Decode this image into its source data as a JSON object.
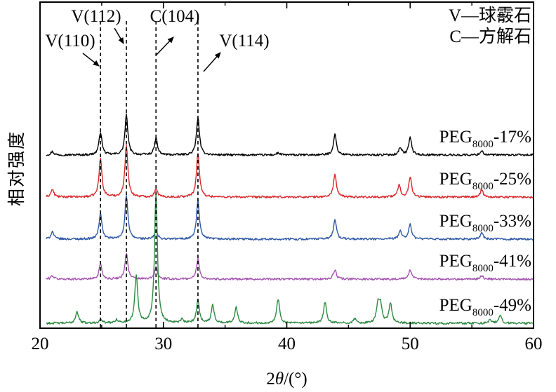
{
  "chart_data": {
    "type": "line",
    "title": "",
    "xlabel": "2θ/(°)",
    "xlabel_parts": {
      "prefix": "2",
      "theta": "θ",
      "suffix": "/(°)"
    },
    "ylabel": "相对强度",
    "xlim": [
      20,
      60
    ],
    "xticks": [
      "20",
      "30",
      "40",
      "50",
      "60"
    ],
    "yticks": [],
    "grid": false,
    "legend": [
      {
        "key": "V",
        "text": "V—球霰石"
      },
      {
        "key": "C",
        "text": "C—方解石"
      }
    ],
    "reference_lines": [
      {
        "name": "V(110)",
        "x": 24.9
      },
      {
        "name": "V(112)",
        "x": 27.0
      },
      {
        "name": "C(104)",
        "x": 29.4
      },
      {
        "name": "V(114)",
        "x": 32.8
      }
    ],
    "annotations": [
      {
        "text": "V(110)",
        "x": 24.9
      },
      {
        "text": "V(112)",
        "x": 27.0
      },
      {
        "text": "C(104)",
        "x": 29.4
      },
      {
        "text": "V(114)",
        "x": 32.8
      }
    ],
    "baseline_noise": 0.025,
    "series": [
      {
        "name": "PEG8000-17%",
        "label": {
          "base": "PEG",
          "sub": "8000",
          "rest": "-17%"
        },
        "color": "#000000",
        "offset": 4.0,
        "peaks": [
          [
            21.0,
            0.08
          ],
          [
            24.9,
            0.55
          ],
          [
            27.0,
            0.95
          ],
          [
            29.4,
            0.4
          ],
          [
            32.8,
            0.9
          ],
          [
            39.3,
            0.05
          ],
          [
            43.9,
            0.5
          ],
          [
            49.2,
            0.18
          ],
          [
            50.0,
            0.42
          ],
          [
            55.8,
            0.1
          ]
        ]
      },
      {
        "name": "PEG8000-25%",
        "label": {
          "base": "PEG",
          "sub": "8000",
          "rest": "-25%"
        },
        "color": "#d9282c",
        "offset": 3.0,
        "peaks": [
          [
            21.0,
            0.18
          ],
          [
            24.9,
            0.92
          ],
          [
            27.0,
            1.25
          ],
          [
            29.4,
            0.2
          ],
          [
            32.8,
            1.05
          ],
          [
            43.9,
            0.55
          ],
          [
            49.1,
            0.28
          ],
          [
            50.0,
            0.48
          ],
          [
            55.8,
            0.18
          ]
        ]
      },
      {
        "name": "PEG8000-33%",
        "label": {
          "base": "PEG",
          "sub": "8000",
          "rest": "-33%"
        },
        "color": "#2e58a6",
        "offset": 2.0,
        "peaks": [
          [
            21.0,
            0.18
          ],
          [
            24.9,
            0.62
          ],
          [
            27.0,
            1.05
          ],
          [
            29.4,
            0.2
          ],
          [
            32.8,
            0.92
          ],
          [
            43.9,
            0.48
          ],
          [
            49.2,
            0.2
          ],
          [
            50.0,
            0.35
          ],
          [
            55.8,
            0.15
          ]
        ]
      },
      {
        "name": "PEG8000-41%",
        "label": {
          "base": "PEG",
          "sub": "8000",
          "rest": "-41%"
        },
        "color": "#a454b0",
        "offset": 1.05,
        "peaks": [
          [
            21.0,
            0.08
          ],
          [
            24.9,
            0.36
          ],
          [
            27.0,
            0.62
          ],
          [
            29.4,
            0.28
          ],
          [
            32.8,
            0.48
          ],
          [
            43.9,
            0.22
          ],
          [
            50.0,
            0.22
          ],
          [
            55.8,
            0.08
          ]
        ]
      },
      {
        "name": "PEG8000-49%",
        "label": {
          "base": "PEG",
          "sub": "8000",
          "rest": "-49%"
        },
        "color": "#2e8a42",
        "offset": 0.0,
        "peaks": [
          [
            23.0,
            0.28
          ],
          [
            24.9,
            0.1
          ],
          [
            26.2,
            0.08
          ],
          [
            27.8,
            1.15
          ],
          [
            29.4,
            3.1
          ],
          [
            31.5,
            0.08
          ],
          [
            32.8,
            0.55
          ],
          [
            34.0,
            0.42
          ],
          [
            35.9,
            0.38
          ],
          [
            39.3,
            0.58
          ],
          [
            43.1,
            0.5
          ],
          [
            45.5,
            0.1
          ],
          [
            47.4,
            0.45
          ],
          [
            47.6,
            0.4
          ],
          [
            48.4,
            0.48
          ],
          [
            56.5,
            0.08
          ],
          [
            57.3,
            0.18
          ]
        ]
      }
    ]
  }
}
